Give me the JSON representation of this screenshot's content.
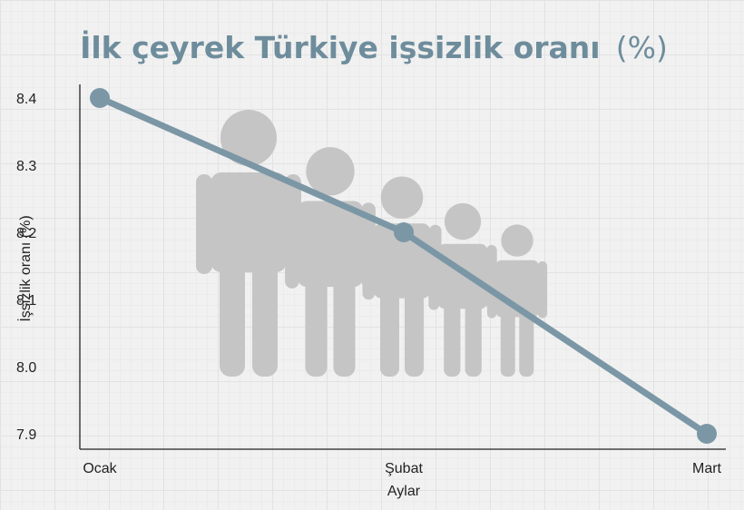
{
  "title_bold": "İlk çeyrek Türkiye işsizlik oranı",
  "title_unit": "(%)",
  "colors": {
    "title": "#6e8d9c",
    "line": "#7b97a6",
    "people": "#c5c5c5",
    "axis": "#222222"
  },
  "chart_data": {
    "type": "line",
    "title": "İlk çeyrek Türkiye işsizlik oranı (%)",
    "xlabel": "Aylar",
    "ylabel": "İşsizlik oranı (%)",
    "categories": [
      "Ocak",
      "Şubat",
      "Mart"
    ],
    "series": [
      {
        "values": [
          8.4,
          8.2,
          7.9
        ]
      }
    ],
    "yticks": [
      "8.4",
      "8.3",
      "8.2",
      "8.1",
      "8.0",
      "7.9"
    ],
    "ytick_values": [
      8.4,
      8.3,
      8.2,
      8.1,
      8.0,
      7.9
    ],
    "ylim": [
      7.9,
      8.4
    ],
    "grid": true,
    "legend": "none"
  },
  "decoration": {
    "people_icon": "people-silhouettes-icon"
  }
}
